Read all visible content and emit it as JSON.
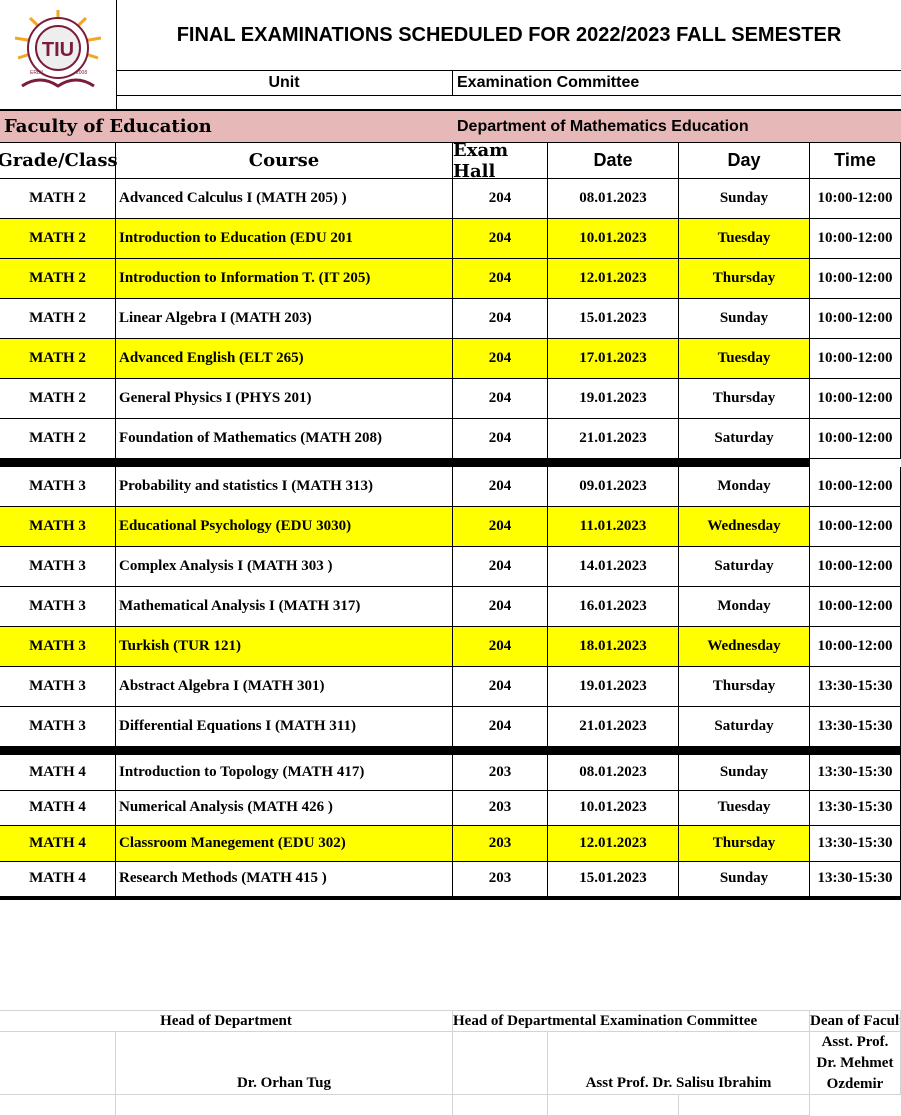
{
  "logo": {
    "text": "TIU",
    "ring_text": "TISHK INTERNATIONAL UNIVERSITY",
    "city": "ERBIL",
    "year": "2008"
  },
  "title": "FINAL EXAMINATIONS SCHEDULED FOR 2022/2023 FALL SEMESTER",
  "unit_label": "Unit",
  "unit_value": "Examination Committee",
  "faculty": "Faculty of Education",
  "department": "Department of Mathematics Education",
  "columns": [
    "Grade/Class",
    "Course",
    "Exam Hall",
    "Date",
    "Day",
    "Time"
  ],
  "groups": [
    [
      {
        "grade": "MATH 2",
        "course": "Advanced Calculus I (MATH 205) )",
        "hall": "204",
        "date": "08.01.2023",
        "day": "Sunday",
        "time": "10:00-12:00",
        "highlight": false
      },
      {
        "grade": "MATH 2",
        "course": "Introduction to Education (EDU 201",
        "hall": "204",
        "date": "10.01.2023",
        "day": "Tuesday",
        "time": "10:00-12:00",
        "highlight": true
      },
      {
        "grade": "MATH 2",
        "course": "Introduction to Information T. (IT 205)",
        "hall": "204",
        "date": "12.01.2023",
        "day": "Thursday",
        "time": "10:00-12:00",
        "highlight": true
      },
      {
        "grade": "MATH 2",
        "course": "Linear Algebra I (MATH 203)",
        "hall": "204",
        "date": "15.01.2023",
        "day": "Sunday",
        "time": "10:00-12:00",
        "highlight": false
      },
      {
        "grade": "MATH 2",
        "course": "Advanced English (ELT 265)",
        "hall": "204",
        "date": "17.01.2023",
        "day": "Tuesday",
        "time": "10:00-12:00",
        "highlight": true
      },
      {
        "grade": "MATH 2",
        "course": "General Physics I (PHYS 201)",
        "hall": "204",
        "date": "19.01.2023",
        "day": "Thursday",
        "time": "10:00-12:00",
        "highlight": false
      },
      {
        "grade": "MATH 2",
        "course": "Foundation of Mathematics (MATH 208)",
        "hall": "204",
        "date": "21.01.2023",
        "day": "Saturday",
        "time": "10:00-12:00",
        "highlight": false
      }
    ],
    [
      {
        "grade": "MATH 3",
        "course": "Probability and statistics I (MATH 313)",
        "hall": "204",
        "date": "09.01.2023",
        "day": "Monday",
        "time": "10:00-12:00",
        "highlight": false
      },
      {
        "grade": "MATH 3",
        "course": "Educational Psychology (EDU 3030)",
        "hall": "204",
        "date": "11.01.2023",
        "day": "Wednesday",
        "time": "10:00-12:00",
        "highlight": true
      },
      {
        "grade": "MATH 3",
        "course": "Complex Analysis I (MATH 303 )",
        "hall": "204",
        "date": "14.01.2023",
        "day": "Saturday",
        "time": "10:00-12:00",
        "highlight": false
      },
      {
        "grade": "MATH 3",
        "course": "Mathematical Analysis I (MATH 317)",
        "hall": "204",
        "date": "16.01.2023",
        "day": "Monday",
        "time": "10:00-12:00",
        "highlight": false
      },
      {
        "grade": "MATH 3",
        "course": "Turkish (TUR 121)",
        "hall": "204",
        "date": "18.01.2023",
        "day": "Wednesday",
        "time": "10:00-12:00",
        "highlight": true
      },
      {
        "grade": "MATH 3",
        "course": "Abstract Algebra I (MATH 301)",
        "hall": "204",
        "date": "19.01.2023",
        "day": "Thursday",
        "time": "13:30-15:30",
        "highlight": false
      },
      {
        "grade": "MATH 3",
        "course": "Differential Equations I (MATH 311)",
        "hall": "204",
        "date": "21.01.2023",
        "day": "Saturday",
        "time": "13:30-15:30",
        "highlight": false
      }
    ],
    [
      {
        "grade": "MATH 4",
        "course": "Introduction to Topology (MATH 417)",
        "hall": "203",
        "date": "08.01.2023",
        "day": "Sunday",
        "time": "13:30-15:30",
        "highlight": false
      },
      {
        "grade": "MATH 4",
        "course": "Numerical Analysis (MATH 426 )",
        "hall": "203",
        "date": "10.01.2023",
        "day": "Tuesday",
        "time": "13:30-15:30",
        "highlight": false
      },
      {
        "grade": "MATH 4",
        "course": "Classroom Manegement  (EDU 302)",
        "hall": "203",
        "date": "12.01.2023",
        "day": "Thursday",
        "time": "13:30-15:30",
        "highlight": true
      },
      {
        "grade": "MATH 4",
        "course": "Research Methods (MATH 415 )",
        "hall": "203",
        "date": "15.01.2023",
        "day": "Sunday",
        "time": "13:30-15:30",
        "highlight": false
      }
    ]
  ],
  "signatures": {
    "head_of_department": {
      "title": "Head of Department",
      "name": "Dr. Orhan Tug"
    },
    "committee_head": {
      "title": "Head of Departmental Examination Committee",
      "name": "Asst Prof. Dr. Salisu Ibrahim"
    },
    "dean": {
      "title": "Dean of Faculty",
      "name_lines": [
        "Asst. Prof.",
        "Dr. Mehmet",
        "Ozdemir"
      ]
    }
  },
  "colors": {
    "highlight": "#ffff00",
    "faculty_band": "#e6b8b7",
    "logo_maroon": "#7b1c3a",
    "logo_sun": "#f5a623"
  }
}
